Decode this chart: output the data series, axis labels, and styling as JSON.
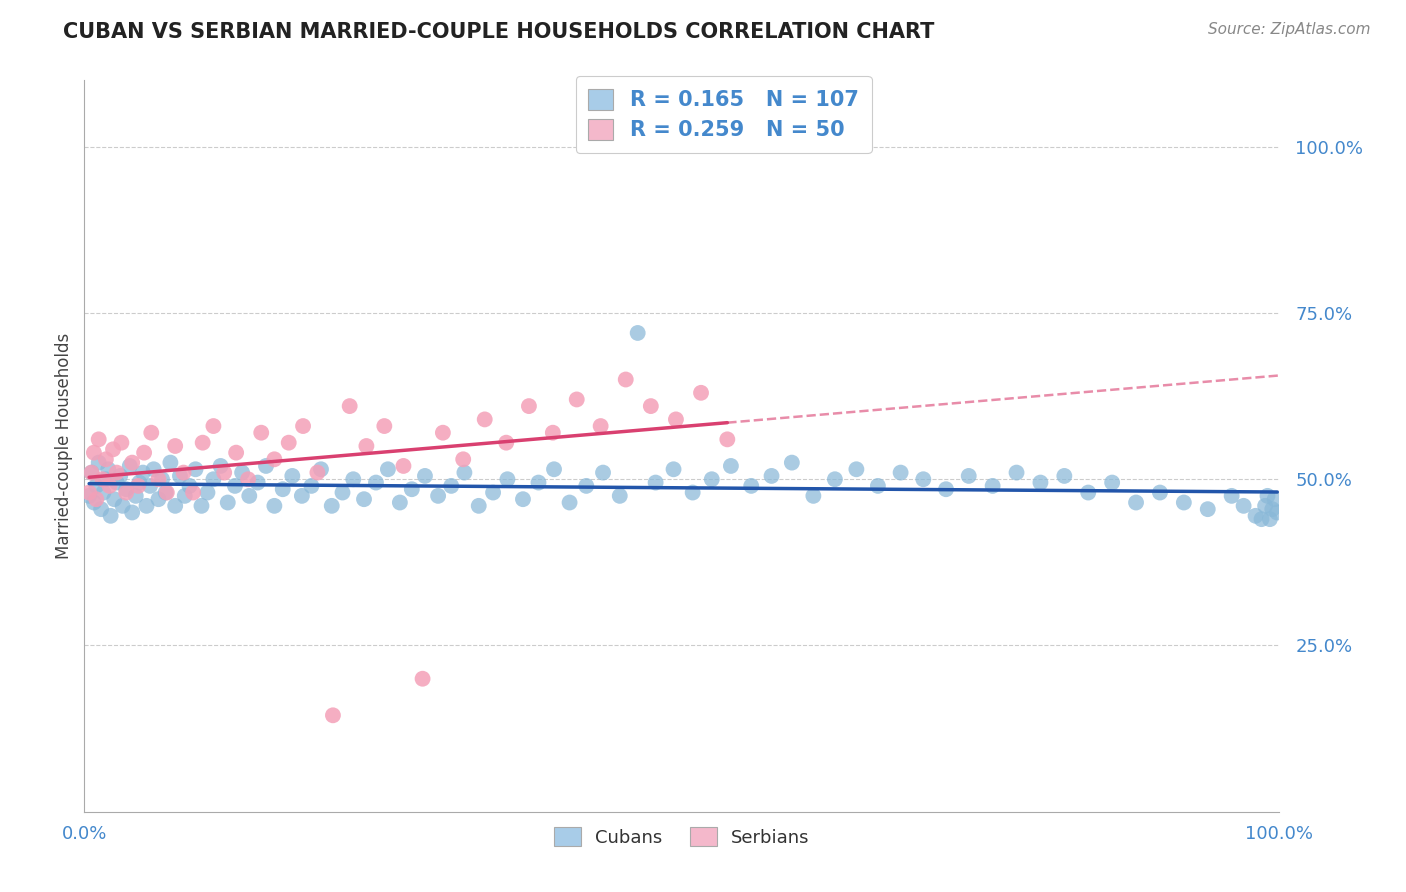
{
  "title": "CUBAN VS SERBIAN MARRIED-COUPLE HOUSEHOLDS CORRELATION CHART",
  "source": "Source: ZipAtlas.com",
  "ylabel": "Married-couple Households",
  "ytick_values": [
    0.25,
    0.5,
    0.75,
    1.0
  ],
  "ytick_labels": [
    "25.0%",
    "50.0%",
    "75.0%",
    "100.0%"
  ],
  "xmin": 0.0,
  "xmax": 1.0,
  "ymin": 0.0,
  "ymax": 1.1,
  "cubans_R": 0.165,
  "cubans_N": 107,
  "serbians_R": 0.259,
  "serbians_N": 50,
  "cuban_color": "#89b8d8",
  "cuban_line_color": "#2255aa",
  "serbian_color": "#f4a0b8",
  "serbian_line_color": "#d94070",
  "legend_box_cuban": "#a8cce8",
  "legend_box_serbian": "#f4b8cb",
  "background_color": "#ffffff",
  "grid_color": "#cccccc",
  "title_color": "#222222",
  "source_color": "#888888",
  "axis_label_color": "#4488cc",
  "legend_R_color": "#4488cc",
  "legend_N_color": "#4488cc",
  "cubans_x": [
    0.004,
    0.006,
    0.008,
    0.01,
    0.012,
    0.014,
    0.016,
    0.018,
    0.02,
    0.022,
    0.025,
    0.027,
    0.03,
    0.032,
    0.035,
    0.038,
    0.04,
    0.043,
    0.046,
    0.049,
    0.052,
    0.055,
    0.058,
    0.062,
    0.065,
    0.068,
    0.072,
    0.076,
    0.08,
    0.084,
    0.088,
    0.093,
    0.098,
    0.103,
    0.108,
    0.114,
    0.12,
    0.126,
    0.132,
    0.138,
    0.145,
    0.152,
    0.159,
    0.166,
    0.174,
    0.182,
    0.19,
    0.198,
    0.207,
    0.216,
    0.225,
    0.234,
    0.244,
    0.254,
    0.264,
    0.274,
    0.285,
    0.296,
    0.307,
    0.318,
    0.33,
    0.342,
    0.354,
    0.367,
    0.38,
    0.393,
    0.406,
    0.42,
    0.434,
    0.448,
    0.463,
    0.478,
    0.493,
    0.509,
    0.525,
    0.541,
    0.558,
    0.575,
    0.592,
    0.61,
    0.628,
    0.646,
    0.664,
    0.683,
    0.702,
    0.721,
    0.74,
    0.76,
    0.78,
    0.8,
    0.82,
    0.84,
    0.86,
    0.88,
    0.9,
    0.92,
    0.94,
    0.96,
    0.97,
    0.98,
    0.985,
    0.988,
    0.99,
    0.992,
    0.994,
    0.996,
    0.998
  ],
  "cubans_y": [
    0.475,
    0.51,
    0.465,
    0.49,
    0.525,
    0.455,
    0.48,
    0.5,
    0.515,
    0.445,
    0.47,
    0.495,
    0.505,
    0.46,
    0.485,
    0.52,
    0.45,
    0.475,
    0.495,
    0.51,
    0.46,
    0.49,
    0.515,
    0.47,
    0.5,
    0.48,
    0.525,
    0.46,
    0.505,
    0.475,
    0.49,
    0.515,
    0.46,
    0.48,
    0.5,
    0.52,
    0.465,
    0.49,
    0.51,
    0.475,
    0.495,
    0.52,
    0.46,
    0.485,
    0.505,
    0.475,
    0.49,
    0.515,
    0.46,
    0.48,
    0.5,
    0.47,
    0.495,
    0.515,
    0.465,
    0.485,
    0.505,
    0.475,
    0.49,
    0.51,
    0.46,
    0.48,
    0.5,
    0.47,
    0.495,
    0.515,
    0.465,
    0.49,
    0.51,
    0.475,
    0.72,
    0.495,
    0.515,
    0.48,
    0.5,
    0.52,
    0.49,
    0.505,
    0.525,
    0.475,
    0.5,
    0.515,
    0.49,
    0.51,
    0.5,
    0.485,
    0.505,
    0.49,
    0.51,
    0.495,
    0.505,
    0.48,
    0.495,
    0.465,
    0.48,
    0.465,
    0.455,
    0.475,
    0.46,
    0.445,
    0.44,
    0.46,
    0.475,
    0.44,
    0.455,
    0.47,
    0.45
  ],
  "serbians_x": [
    0.004,
    0.006,
    0.008,
    0.01,
    0.012,
    0.015,
    0.018,
    0.021,
    0.024,
    0.027,
    0.031,
    0.035,
    0.04,
    0.045,
    0.05,
    0.056,
    0.062,
    0.069,
    0.076,
    0.083,
    0.091,
    0.099,
    0.108,
    0.117,
    0.127,
    0.137,
    0.148,
    0.159,
    0.171,
    0.183,
    0.195,
    0.208,
    0.222,
    0.236,
    0.251,
    0.267,
    0.283,
    0.3,
    0.317,
    0.335,
    0.353,
    0.372,
    0.392,
    0.412,
    0.432,
    0.453,
    0.474,
    0.495,
    0.516,
    0.538
  ],
  "serbians_y": [
    0.48,
    0.51,
    0.54,
    0.47,
    0.56,
    0.5,
    0.53,
    0.49,
    0.545,
    0.51,
    0.555,
    0.48,
    0.525,
    0.49,
    0.54,
    0.57,
    0.5,
    0.48,
    0.55,
    0.51,
    0.48,
    0.555,
    0.58,
    0.51,
    0.54,
    0.5,
    0.57,
    0.53,
    0.555,
    0.58,
    0.51,
    0.145,
    0.61,
    0.55,
    0.58,
    0.52,
    0.2,
    0.57,
    0.53,
    0.59,
    0.555,
    0.61,
    0.57,
    0.62,
    0.58,
    0.65,
    0.61,
    0.59,
    0.63,
    0.56
  ]
}
